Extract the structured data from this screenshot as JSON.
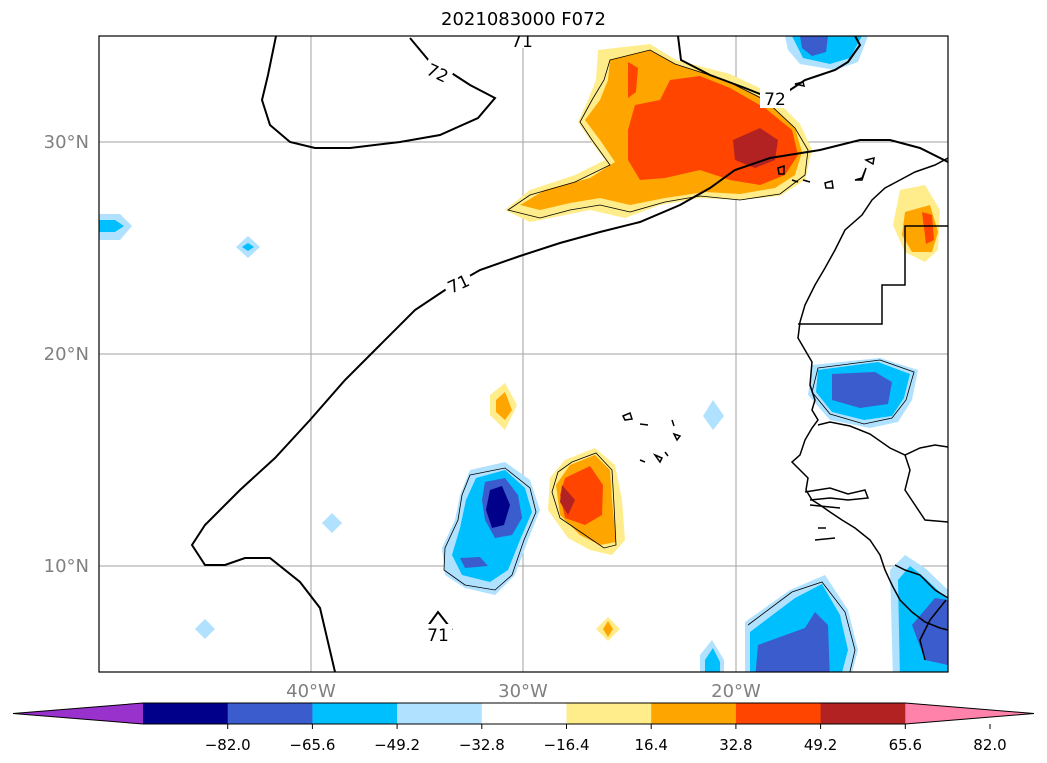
{
  "title": "2021083000 F072",
  "map": {
    "lat_labels": [
      "30°N",
      "20°N",
      "10°N"
    ],
    "lon_labels": [
      "40°W",
      "30°W",
      "20°W"
    ],
    "contour_labels": [
      "71",
      "72",
      "72",
      "71",
      "71"
    ]
  },
  "colorbar": {
    "colors": [
      "#9932cc",
      "#00008b",
      "#3a5ccc",
      "#00bfff",
      "#b0e2ff",
      "#ffffff",
      "#ffec8b",
      "#ffa500",
      "#ff4500",
      "#b22222",
      "#ff82ab"
    ],
    "tick_labels": [
      "−82.0",
      "−65.6",
      "−49.2",
      "−32.8",
      "−16.4",
      "16.4",
      "32.8",
      "49.2",
      "65.6",
      "82.0"
    ]
  }
}
